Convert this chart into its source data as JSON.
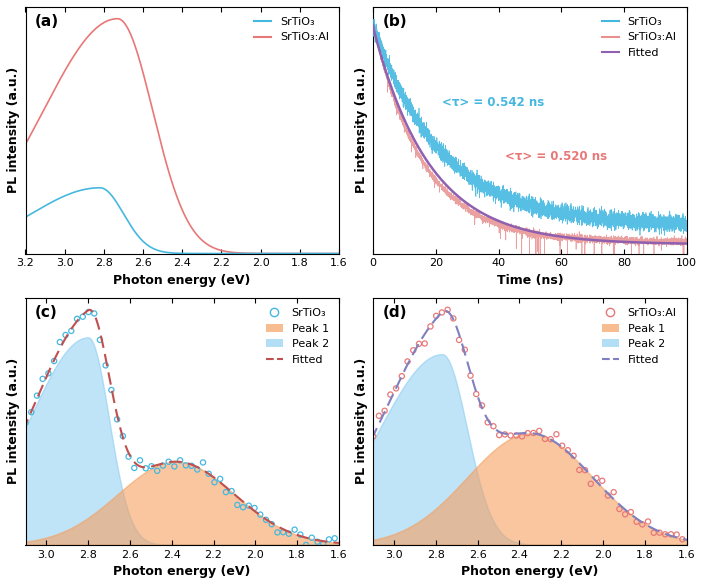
{
  "fig_width": 7.04,
  "fig_height": 5.85,
  "bg_color": "#ffffff",
  "panel_a": {
    "label": "(a)",
    "xlabel": "Photon energy (eV)",
    "ylabel": "PL intensity (a.u.)",
    "xlim": [
      3.2,
      1.6
    ],
    "color_srtio3": "#45b8e0",
    "color_srtio3al": "#e87878",
    "legend": [
      "SrTiO₃",
      "SrTiO₃:Al"
    ]
  },
  "panel_b": {
    "label": "(b)",
    "xlabel": "Time (ns)",
    "ylabel": "PL intensity (a.u.)",
    "xlim": [
      0,
      100
    ],
    "color_srtio3": "#45b8e0",
    "color_srtio3al": "#e89090",
    "color_fitted": "#9060b0",
    "tau_srtio3_color": "#45b8e0",
    "tau_srtio3al_color": "#e87878",
    "tau_srtio3": "<τ> = 0.542 ns",
    "tau_srtio3al": "<τ> = 0.520 ns",
    "legend": [
      "SrTiO₃",
      "SrTiO₃:Al",
      "Fitted"
    ]
  },
  "panel_c": {
    "label": "(c)",
    "xlabel": "Photon energy (eV)",
    "ylabel": "PL intensity (a.u.)",
    "xlim": [
      3.1,
      1.6
    ],
    "color_data": "#45b8e0",
    "color_peak1_fill": "#f5a060",
    "color_peak2_fill": "#80c8f0",
    "color_fitted": "#c05050",
    "legend": [
      "SrTiO₃",
      "Peak 1",
      "Peak 2",
      "Fitted"
    ]
  },
  "panel_d": {
    "label": "(d)",
    "xlabel": "Photon energy (eV)",
    "ylabel": "PL intensity (a.u.)",
    "xlim": [
      3.1,
      1.6
    ],
    "color_data": "#e87878",
    "color_peak1_fill": "#f5a060",
    "color_peak2_fill": "#80c8f0",
    "color_fitted": "#8080c0",
    "legend": [
      "SrTiO₃:Al",
      "Peak 1",
      "Peak 2",
      "Fitted"
    ]
  }
}
